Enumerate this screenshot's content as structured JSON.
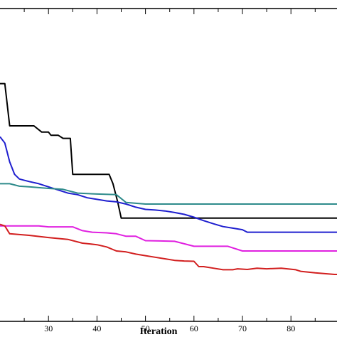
{
  "chart_data": {
    "type": "line",
    "title": "",
    "xlabel": "Iteration",
    "ylabel": "",
    "xlim": [
      20,
      89.5
    ],
    "ylim": [
      0,
      1
    ],
    "grid": false,
    "x_ticks": [
      30,
      40,
      50,
      60,
      70,
      80
    ],
    "series": [
      {
        "color": "#000000",
        "points": [
          [
            20,
            0.76
          ],
          [
            21,
            0.76
          ],
          [
            22,
            0.625
          ],
          [
            27,
            0.625
          ],
          [
            28.6,
            0.605
          ],
          [
            30,
            0.605
          ],
          [
            30.5,
            0.595
          ],
          [
            32,
            0.595
          ],
          [
            33,
            0.585
          ],
          [
            34.5,
            0.585
          ],
          [
            35,
            0.47
          ],
          [
            42.5,
            0.47
          ],
          [
            43.3,
            0.44
          ],
          [
            44.3,
            0.38
          ],
          [
            45,
            0.33
          ],
          [
            89.5,
            0.33
          ]
        ]
      },
      {
        "color": "#1f1fcf",
        "points": [
          [
            20,
            0.59
          ],
          [
            21,
            0.57
          ],
          [
            22,
            0.51
          ],
          [
            23,
            0.47
          ],
          [
            24,
            0.455
          ],
          [
            26,
            0.447
          ],
          [
            28,
            0.44
          ],
          [
            30,
            0.43
          ],
          [
            32,
            0.42
          ],
          [
            34,
            0.41
          ],
          [
            36,
            0.405
          ],
          [
            38,
            0.395
          ],
          [
            40,
            0.39
          ],
          [
            42,
            0.385
          ],
          [
            44,
            0.382
          ],
          [
            46,
            0.375
          ],
          [
            48,
            0.365
          ],
          [
            50,
            0.358
          ],
          [
            52,
            0.356
          ],
          [
            54,
            0.353
          ],
          [
            56,
            0.348
          ],
          [
            58,
            0.342
          ],
          [
            60,
            0.333
          ],
          [
            62,
            0.322
          ],
          [
            64,
            0.312
          ],
          [
            66,
            0.303
          ],
          [
            68,
            0.298
          ],
          [
            70,
            0.293
          ],
          [
            71,
            0.285
          ],
          [
            89.5,
            0.285
          ]
        ]
      },
      {
        "color": "#2e8b8b",
        "points": [
          [
            20,
            0.44
          ],
          [
            22,
            0.44
          ],
          [
            24,
            0.432
          ],
          [
            26,
            0.43
          ],
          [
            30,
            0.425
          ],
          [
            33,
            0.422
          ],
          [
            36,
            0.41
          ],
          [
            40,
            0.407
          ],
          [
            44,
            0.405
          ],
          [
            46,
            0.38
          ],
          [
            50,
            0.375
          ],
          [
            89.5,
            0.375
          ]
        ]
      },
      {
        "color": "#e020e0",
        "points": [
          [
            20,
            0.305
          ],
          [
            28,
            0.305
          ],
          [
            30,
            0.302
          ],
          [
            35,
            0.302
          ],
          [
            37,
            0.29
          ],
          [
            39,
            0.285
          ],
          [
            42,
            0.283
          ],
          [
            44,
            0.28
          ],
          [
            46,
            0.272
          ],
          [
            48,
            0.272
          ],
          [
            50,
            0.258
          ],
          [
            53,
            0.257
          ],
          [
            56,
            0.256
          ],
          [
            60,
            0.24
          ],
          [
            67,
            0.24
          ],
          [
            70,
            0.225
          ],
          [
            89.5,
            0.225
          ]
        ]
      },
      {
        "color": "#d21f1f",
        "points": [
          [
            20,
            0.31
          ],
          [
            21,
            0.305
          ],
          [
            22,
            0.28
          ],
          [
            26,
            0.275
          ],
          [
            30,
            0.268
          ],
          [
            34,
            0.262
          ],
          [
            37,
            0.25
          ],
          [
            40,
            0.245
          ],
          [
            42,
            0.238
          ],
          [
            44,
            0.225
          ],
          [
            46,
            0.222
          ],
          [
            48,
            0.215
          ],
          [
            50,
            0.21
          ],
          [
            52,
            0.205
          ],
          [
            54,
            0.2
          ],
          [
            56,
            0.195
          ],
          [
            58,
            0.193
          ],
          [
            60,
            0.192
          ],
          [
            61,
            0.175
          ],
          [
            62,
            0.175
          ],
          [
            64,
            0.17
          ],
          [
            66,
            0.165
          ],
          [
            68,
            0.165
          ],
          [
            69,
            0.168
          ],
          [
            71,
            0.166
          ],
          [
            73,
            0.17
          ],
          [
            75,
            0.168
          ],
          [
            78,
            0.17
          ],
          [
            81,
            0.165
          ],
          [
            82,
            0.16
          ],
          [
            85,
            0.155
          ],
          [
            89,
            0.15
          ],
          [
            89.5,
            0.15
          ]
        ]
      }
    ]
  }
}
